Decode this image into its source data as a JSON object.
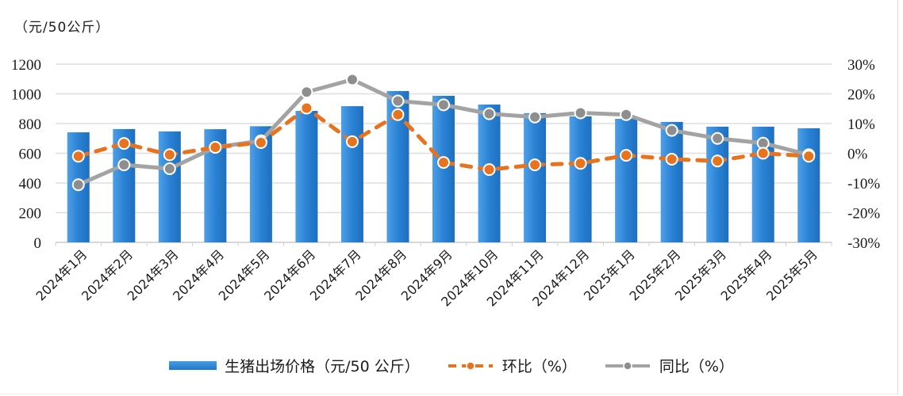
{
  "chart_data": {
    "type": "bar+line (dual axis)",
    "title": "",
    "unit_label": "（元/50公斤）",
    "categories": [
      "2024年1月",
      "2024年2月",
      "2024年3月",
      "2024年4月",
      "2024年5月",
      "2024年6月",
      "2024年7月",
      "2024年8月",
      "2024年9月",
      "2024年10月",
      "2024年11月",
      "2024年12月",
      "2025年1月",
      "2025年2月",
      "2025年3月",
      "2025年4月",
      "2025年5月"
    ],
    "series": [
      {
        "name": "生猪出场价格（元/50公斤）",
        "type": "bar",
        "axis": "left",
        "color": "#2a82d4",
        "values": [
          741,
          763,
          747,
          762,
          782,
          885,
          917,
          1019,
          987,
          928,
          870,
          848,
          832,
          811,
          779,
          779,
          768
        ]
      },
      {
        "name": "环比（%）",
        "type": "line",
        "axis": "right",
        "style": "dashed",
        "color": "#e8731e",
        "values": [
          -1,
          3.3,
          -0.5,
          2,
          3.6,
          15.2,
          3.9,
          13,
          -3.1,
          -5.5,
          -3.9,
          -3.4,
          -0.7,
          -2,
          -2.6,
          0,
          -1
        ]
      },
      {
        "name": "同比（%）",
        "type": "line",
        "axis": "right",
        "style": "solid",
        "color": "#a3a3a3",
        "values": [
          -10.6,
          -3.9,
          -5.2,
          2,
          4.2,
          20.6,
          24.8,
          17.6,
          16.3,
          13.3,
          12.2,
          13.6,
          13,
          7.7,
          5,
          3.4,
          -0.5
        ]
      }
    ],
    "left_axis": {
      "ylim": [
        0,
        1200
      ],
      "ticks": [
        "0",
        "200",
        "400",
        "600",
        "800",
        "1000",
        "1200"
      ]
    },
    "right_axis": {
      "ylim": [
        -30,
        30
      ],
      "ticks": [
        "-30%",
        "-20%",
        "-10%",
        "0%",
        "10%",
        "20%",
        "30%"
      ]
    },
    "grid": true,
    "legend_position": "bottom"
  },
  "legend": {
    "bar": "生猪出场价格（元/50 公斤）",
    "mom": "环比（%）",
    "yoy": "同比（%）"
  }
}
